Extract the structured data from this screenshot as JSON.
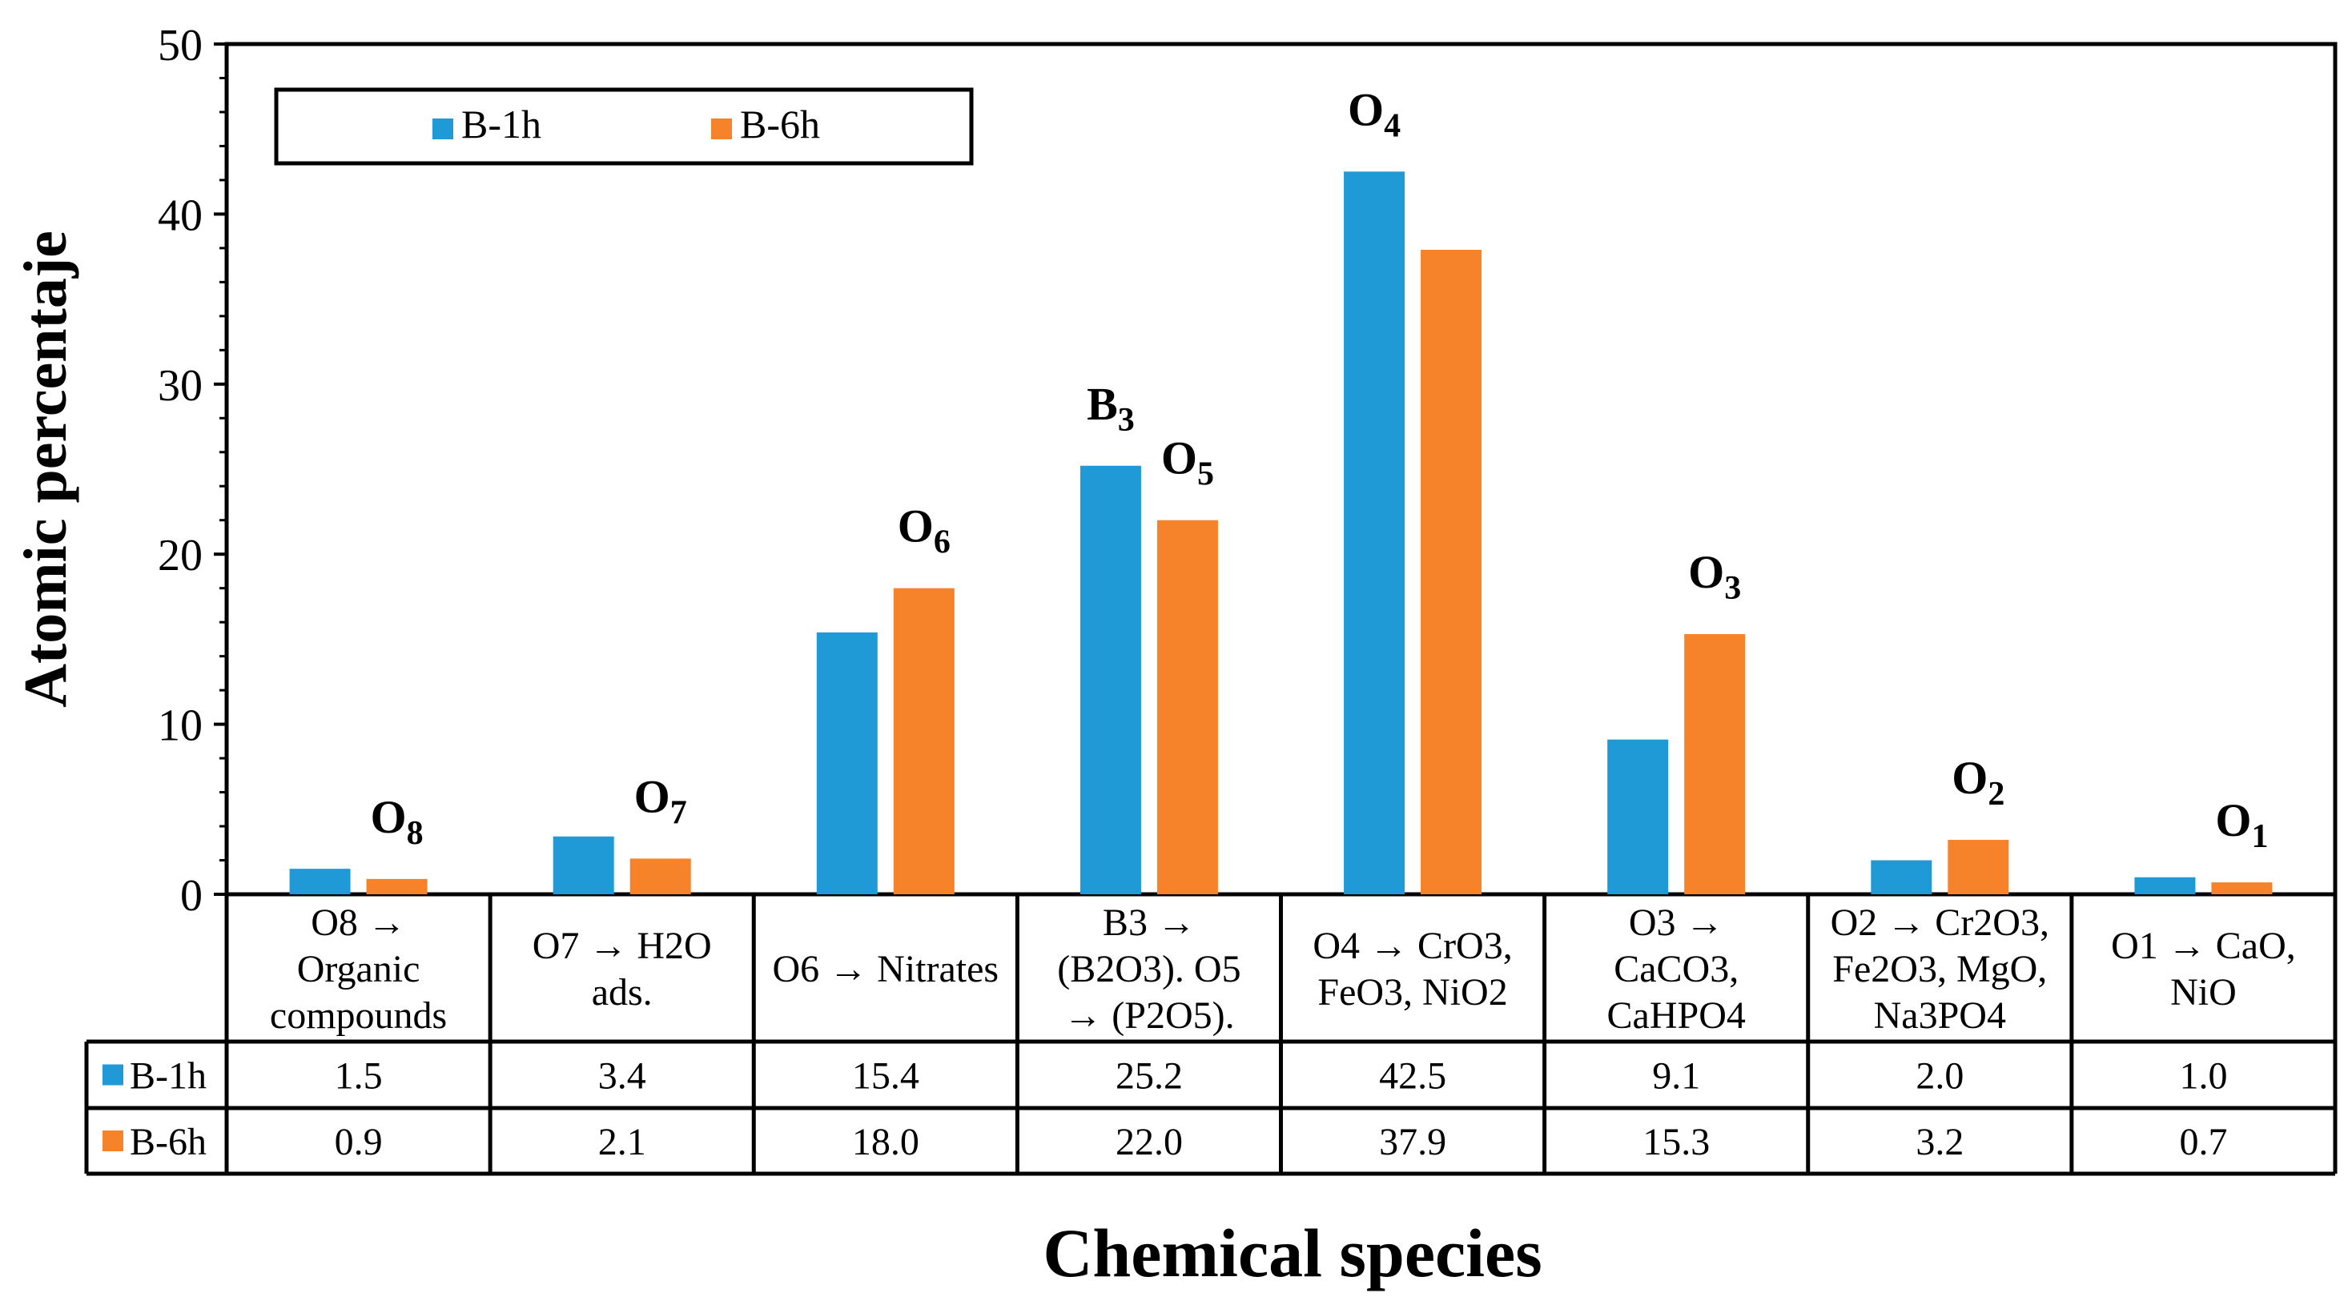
{
  "colors": {
    "b1h": "#1f9ad6",
    "b6h": "#f6822a",
    "ink": "#000000"
  },
  "chart_data": {
    "type": "bar",
    "ylabel": "Atomic percentaje",
    "xlabel": "Chemical species",
    "ylim": [
      0,
      50
    ],
    "yticks": [
      "0",
      "10",
      "20",
      "30",
      "40",
      "50"
    ],
    "legend": {
      "placement": "top-left",
      "entries": [
        "B-1h",
        "B-6h"
      ]
    },
    "categories": [
      [
        "O8 →",
        "Organic",
        "compounds"
      ],
      [
        "O7 → H2O",
        "ads."
      ],
      [
        "O6 → Nitrates"
      ],
      [
        "B3 →",
        "(B2O3). O5",
        "→ (P2O5)."
      ],
      [
        "O4 → CrO3,",
        "FeO3, NiO2"
      ],
      [
        "O3 →",
        "CaCO3,",
        "CaHPO4"
      ],
      [
        "O2 → Cr2O3,",
        "Fe2O3, MgO,",
        "Na3PO4"
      ],
      [
        "O1 → CaO,",
        "NiO"
      ]
    ],
    "series": [
      {
        "name": "B-1h",
        "values": [
          1.5,
          3.4,
          15.4,
          25.2,
          42.5,
          9.1,
          2.0,
          1.0
        ],
        "table": [
          "1.5",
          "3.4",
          "15.4",
          "25.2",
          "42.5",
          "9.1",
          "2.0",
          "1.0"
        ]
      },
      {
        "name": "B-6h",
        "values": [
          0.9,
          2.1,
          18.0,
          22.0,
          37.9,
          15.3,
          3.2,
          0.7
        ],
        "table": [
          "0.9",
          "2.1",
          "18.0",
          "22.0",
          "37.9",
          "15.3",
          "3.2",
          "0.7"
        ]
      }
    ],
    "annotations": [
      {
        "base": "O",
        "sub": "8",
        "category": 0,
        "series": 1
      },
      {
        "base": "O",
        "sub": "7",
        "category": 1,
        "series": 1
      },
      {
        "base": "O",
        "sub": "6",
        "category": 2,
        "series": 1
      },
      {
        "base": "B",
        "sub": "3",
        "category": 3,
        "series": 0
      },
      {
        "base": "O",
        "sub": "5",
        "category": 3,
        "series": 1
      },
      {
        "base": "O",
        "sub": "4",
        "category": 4,
        "series": 0
      },
      {
        "base": "O",
        "sub": "3",
        "category": 5,
        "series": 1
      },
      {
        "base": "O",
        "sub": "2",
        "category": 6,
        "series": 1
      },
      {
        "base": "O",
        "sub": "1",
        "category": 7,
        "series": 1
      }
    ]
  }
}
